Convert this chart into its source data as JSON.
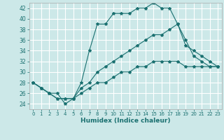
{
  "xlabel": "Humidex (Indice chaleur)",
  "ylabel": "",
  "bg_color": "#cce8e8",
  "grid_color": "#ffffff",
  "line_color": "#1a7070",
  "xlim": [
    -0.5,
    23.5
  ],
  "ylim": [
    23,
    43
  ],
  "yticks": [
    24,
    26,
    28,
    30,
    32,
    34,
    36,
    38,
    40,
    42
  ],
  "xticks": [
    0,
    1,
    2,
    3,
    4,
    5,
    6,
    7,
    8,
    9,
    10,
    11,
    12,
    13,
    14,
    15,
    16,
    17,
    18,
    19,
    20,
    21,
    22,
    23
  ],
  "line1_x": [
    0,
    1,
    2,
    3,
    4,
    5,
    6,
    7,
    8,
    9,
    10,
    11,
    12,
    13,
    14,
    15,
    16,
    17,
    18,
    19,
    20,
    21,
    22,
    23
  ],
  "line1_y": [
    28,
    27,
    26,
    26,
    24,
    25,
    28,
    34,
    39,
    39,
    41,
    41,
    41,
    42,
    42,
    43,
    42,
    42,
    39,
    36,
    33,
    32,
    31,
    31
  ],
  "line2_x": [
    0,
    1,
    2,
    3,
    4,
    5,
    6,
    7,
    8,
    9,
    10,
    11,
    12,
    13,
    14,
    15,
    16,
    17,
    18,
    19,
    20,
    21,
    22,
    23
  ],
  "line2_y": [
    28,
    27,
    26,
    25,
    25,
    25,
    27,
    28,
    30,
    31,
    32,
    33,
    34,
    35,
    36,
    37,
    37,
    38,
    39,
    35,
    34,
    33,
    32,
    31
  ],
  "line3_x": [
    0,
    1,
    2,
    3,
    4,
    5,
    6,
    7,
    8,
    9,
    10,
    11,
    12,
    13,
    14,
    15,
    16,
    17,
    18,
    19,
    20,
    21,
    22,
    23
  ],
  "line3_y": [
    28,
    27,
    26,
    25,
    25,
    25,
    26,
    27,
    28,
    28,
    29,
    30,
    30,
    31,
    31,
    32,
    32,
    32,
    32,
    31,
    31,
    31,
    31,
    31
  ]
}
